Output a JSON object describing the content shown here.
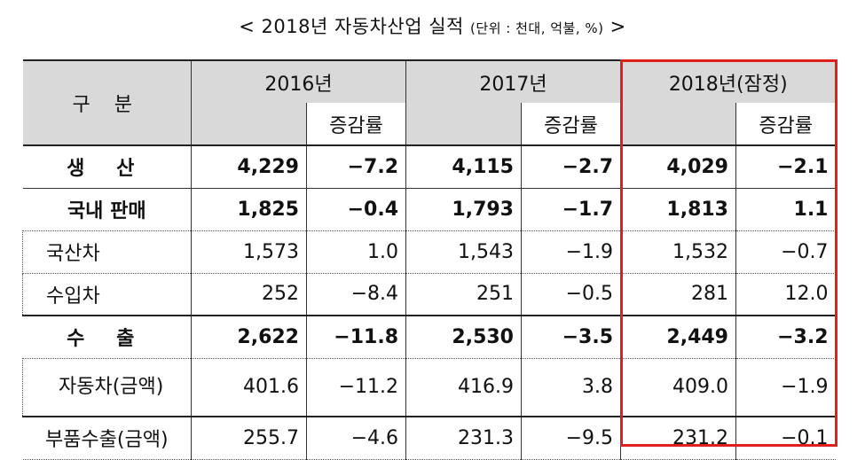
{
  "title": {
    "main": "< 2018년 자동차산업 실적",
    "unit": "(단위 : 천대, 억불, %)",
    "close": ">"
  },
  "header": {
    "category": "구  분",
    "y2016": "2016년",
    "y2017": "2017년",
    "y2018": "2018년(잠정)",
    "rate": "증감률"
  },
  "rows": [
    {
      "label": "생  산",
      "v2016": "4,229",
      "r2016": "−7.2",
      "v2017": "4,115",
      "r2017": "−2.7",
      "v2018": "4,029",
      "r2018": "−2.1"
    },
    {
      "label": "국내 판매",
      "v2016": "1,825",
      "r2016": "−0.4",
      "v2017": "1,793",
      "r2017": "−1.7",
      "v2018": "1,813",
      "r2018": "1.1"
    },
    {
      "label": "국산차",
      "v2016": "1,573",
      "r2016": "1.0",
      "v2017": "1,543",
      "r2017": "−1.9",
      "v2018": "1,532",
      "r2018": "−0.7"
    },
    {
      "label": "수입차",
      "v2016": "252",
      "r2016": "−8.4",
      "v2017": "251",
      "r2017": "−0.5",
      "v2018": "281",
      "r2018": "12.0"
    },
    {
      "label": "수  출",
      "v2016": "2,622",
      "r2016": "−11.8",
      "v2017": "2,530",
      "r2017": "−3.5",
      "v2018": "2,449",
      "r2018": "−3.2"
    },
    {
      "label": "자동차(금액)",
      "v2016": "401.6",
      "r2016": "−11.2",
      "v2017": "416.9",
      "r2017": "3.8",
      "v2018": "409.0",
      "r2018": "−1.9"
    },
    {
      "label": "부품수출(금액)",
      "v2016": "255.7",
      "r2016": "−4.6",
      "v2017": "231.3",
      "r2017": "−9.5",
      "v2018": "231.2",
      "r2018": "−0.1"
    }
  ]
}
